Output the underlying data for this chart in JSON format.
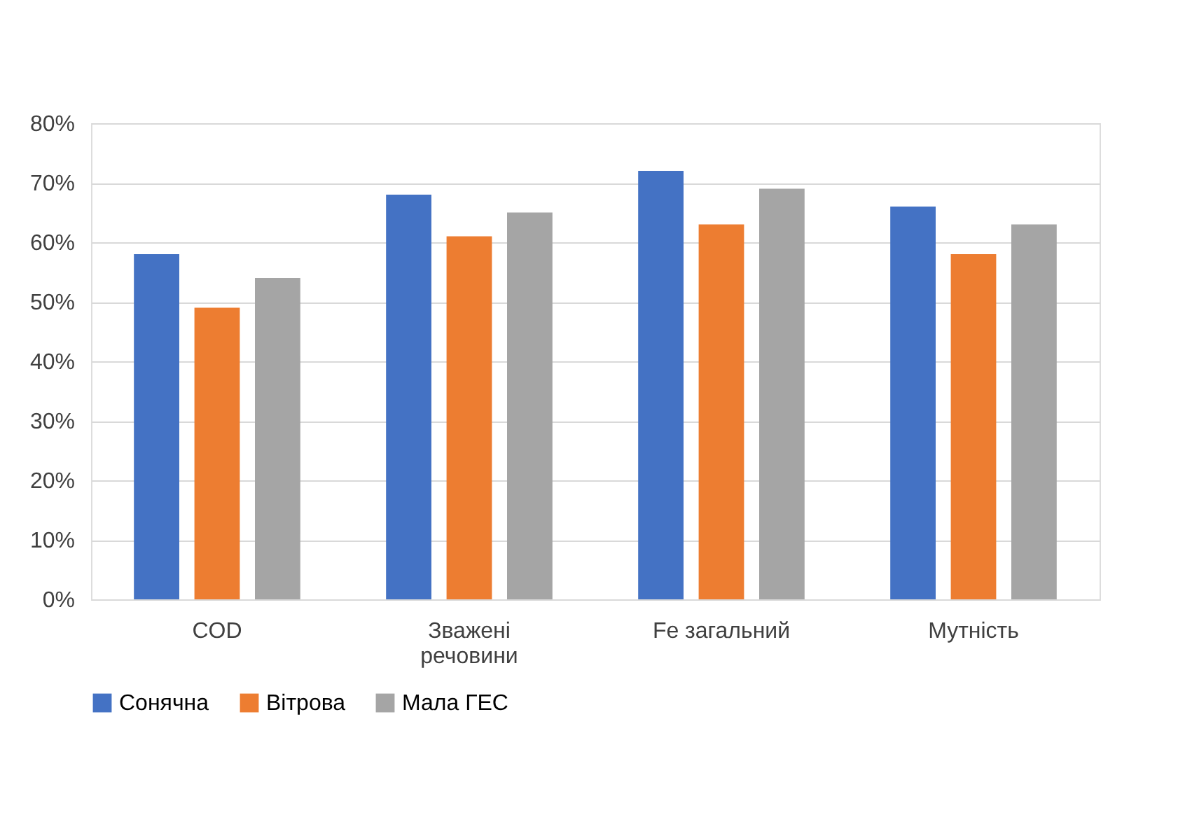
{
  "chart_data": {
    "type": "bar",
    "categories": [
      "COD",
      "Зважені речовини",
      "Fe загальний",
      "Мутність"
    ],
    "series": [
      {
        "name": "Сонячна",
        "color": "#4472c4",
        "values": [
          58,
          68,
          72,
          66
        ]
      },
      {
        "name": "Вітрова",
        "color": "#ed7d31",
        "values": [
          49,
          61,
          63,
          58
        ]
      },
      {
        "name": "Мала ГЕС",
        "color": "#a5a5a5",
        "values": [
          54,
          65,
          69,
          63
        ]
      }
    ],
    "ylim": [
      0,
      80
    ],
    "yticks": [
      {
        "value": 0,
        "label": "0%"
      },
      {
        "value": 10,
        "label": "10%"
      },
      {
        "value": 20,
        "label": "20%"
      },
      {
        "value": 30,
        "label": "30%"
      },
      {
        "value": 40,
        "label": "40%"
      },
      {
        "value": 50,
        "label": "50%"
      },
      {
        "value": 60,
        "label": "60%"
      },
      {
        "value": 70,
        "label": "70%"
      },
      {
        "value": 80,
        "label": "80%"
      }
    ],
    "grid": "y",
    "legend": "bottom"
  }
}
